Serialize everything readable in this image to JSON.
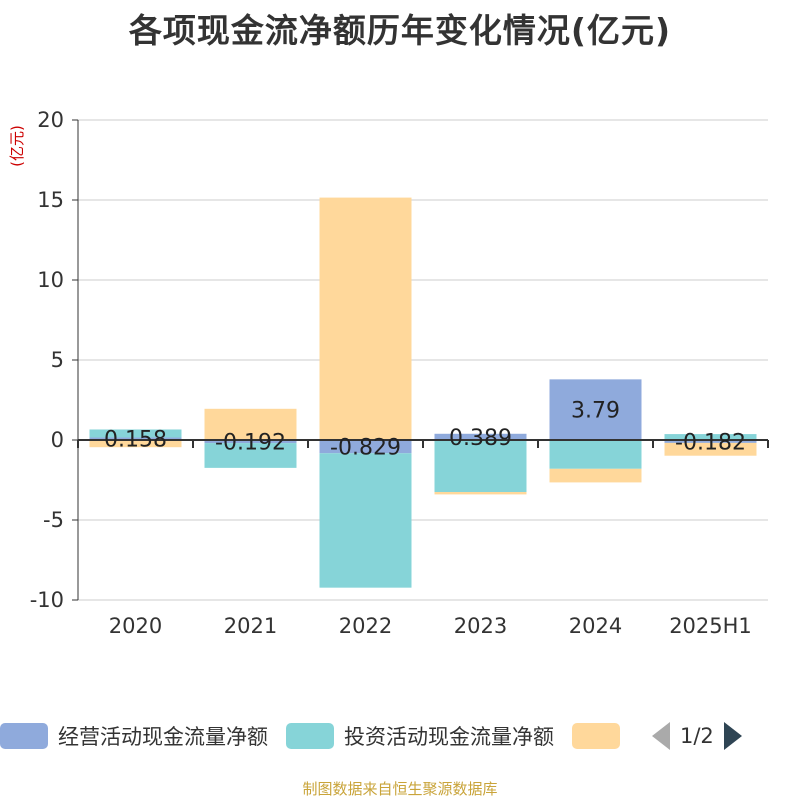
{
  "chart_data": {
    "type": "bar",
    "stacked": true,
    "title": "各项现金流净额历年变化情况(亿元)",
    "ylabel": "(亿元)",
    "categories": [
      "2020",
      "2021",
      "2022",
      "2023",
      "2024",
      "2025H1"
    ],
    "ylim": [
      -10,
      20
    ],
    "yticks": [
      -10,
      -5,
      0,
      5,
      10,
      15,
      20
    ],
    "grid": true,
    "series": [
      {
        "name": "经营活动现金流量净额",
        "color": "#8faadc",
        "values": [
          0.158,
          -0.192,
          -0.829,
          0.389,
          3.79,
          -0.182
        ],
        "labels": [
          "0.158",
          "-0.192",
          "-0.829",
          "0.389",
          "3.79",
          "-0.182"
        ]
      },
      {
        "name": "投资活动现金流量净额",
        "color": "#86d4d8",
        "values": [
          0.5,
          -1.55,
          -8.4,
          -3.25,
          -1.8,
          0.37
        ]
      },
      {
        "name": "",
        "color": "#ffd89b",
        "values": [
          -0.45,
          1.95,
          15.15,
          -0.15,
          -0.85,
          -0.8
        ]
      }
    ],
    "legend_position": "bottom"
  },
  "legend": {
    "page": "1/2"
  },
  "source": "制图数据来自恒生聚源数据库"
}
